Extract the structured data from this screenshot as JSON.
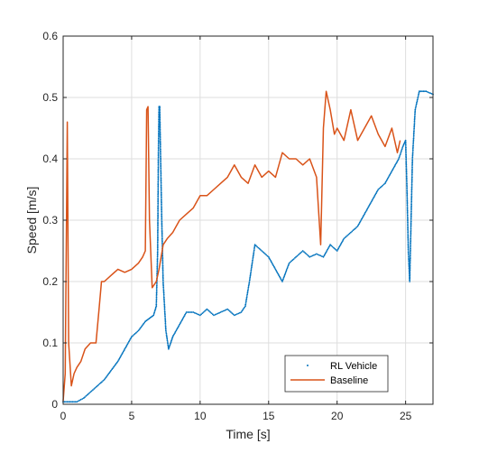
{
  "chart_data": {
    "type": "line",
    "xlabel": "Time [s]",
    "ylabel": "Speed [m/s]",
    "xlim": [
      0,
      27
    ],
    "ylim": [
      0,
      0.6
    ],
    "xticks": [
      0,
      5,
      10,
      15,
      20,
      25
    ],
    "yticks": [
      0,
      0.1,
      0.2,
      0.3,
      0.4,
      0.5,
      0.6
    ],
    "grid": true,
    "legend_position": "bottom-right",
    "series": [
      {
        "name": "RL Vehicle",
        "style": "dotted",
        "color": "#0072BD",
        "points": [
          [
            0,
            0.004
          ],
          [
            0.5,
            0.004
          ],
          [
            1,
            0.004
          ],
          [
            1.5,
            0.01
          ],
          [
            2,
            0.02
          ],
          [
            2.5,
            0.03
          ],
          [
            3,
            0.04
          ],
          [
            3.5,
            0.055
          ],
          [
            4,
            0.07
          ],
          [
            4.5,
            0.09
          ],
          [
            5,
            0.11
          ],
          [
            5.5,
            0.12
          ],
          [
            6,
            0.135
          ],
          [
            6.3,
            0.14
          ],
          [
            6.6,
            0.145
          ],
          [
            6.8,
            0.16
          ],
          [
            6.9,
            0.25
          ],
          [
            6.95,
            0.4
          ],
          [
            7.0,
            0.485
          ],
          [
            7.05,
            0.485
          ],
          [
            7.1,
            0.42
          ],
          [
            7.2,
            0.3
          ],
          [
            7.3,
            0.2
          ],
          [
            7.5,
            0.12
          ],
          [
            7.7,
            0.09
          ],
          [
            8,
            0.11
          ],
          [
            8.5,
            0.13
          ],
          [
            9,
            0.15
          ],
          [
            9.5,
            0.15
          ],
          [
            10,
            0.145
          ],
          [
            10.5,
            0.155
          ],
          [
            11,
            0.145
          ],
          [
            11.5,
            0.15
          ],
          [
            12,
            0.155
          ],
          [
            12.5,
            0.145
          ],
          [
            13,
            0.15
          ],
          [
            13.3,
            0.16
          ],
          [
            13.6,
            0.2
          ],
          [
            14,
            0.26
          ],
          [
            14.5,
            0.25
          ],
          [
            15,
            0.24
          ],
          [
            15.5,
            0.22
          ],
          [
            16,
            0.2
          ],
          [
            16.5,
            0.23
          ],
          [
            17,
            0.24
          ],
          [
            17.5,
            0.25
          ],
          [
            18,
            0.24
          ],
          [
            18.5,
            0.245
          ],
          [
            19,
            0.24
          ],
          [
            19.5,
            0.26
          ],
          [
            20,
            0.25
          ],
          [
            20.5,
            0.27
          ],
          [
            21,
            0.28
          ],
          [
            21.5,
            0.29
          ],
          [
            22,
            0.31
          ],
          [
            22.5,
            0.33
          ],
          [
            23,
            0.35
          ],
          [
            23.5,
            0.36
          ],
          [
            24,
            0.38
          ],
          [
            24.5,
            0.4
          ],
          [
            24.8,
            0.42
          ],
          [
            25.0,
            0.43
          ],
          [
            25.1,
            0.35
          ],
          [
            25.2,
            0.25
          ],
          [
            25.3,
            0.2
          ],
          [
            25.4,
            0.3
          ],
          [
            25.5,
            0.4
          ],
          [
            25.7,
            0.48
          ],
          [
            26,
            0.51
          ],
          [
            26.5,
            0.51
          ],
          [
            27,
            0.505
          ]
        ]
      },
      {
        "name": "Baseline",
        "style": "solid",
        "color": "#D95319",
        "points": [
          [
            0,
            0.005
          ],
          [
            0.15,
            0.05
          ],
          [
            0.3,
            0.46
          ],
          [
            0.4,
            0.1
          ],
          [
            0.6,
            0.03
          ],
          [
            0.8,
            0.05
          ],
          [
            1,
            0.06
          ],
          [
            1.3,
            0.07
          ],
          [
            1.6,
            0.09
          ],
          [
            2,
            0.1
          ],
          [
            2.4,
            0.1
          ],
          [
            2.6,
            0.15
          ],
          [
            2.8,
            0.2
          ],
          [
            3,
            0.2
          ],
          [
            3.5,
            0.21
          ],
          [
            4,
            0.22
          ],
          [
            4.5,
            0.215
          ],
          [
            5,
            0.22
          ],
          [
            5.5,
            0.23
          ],
          [
            5.8,
            0.24
          ],
          [
            6,
            0.25
          ],
          [
            6.1,
            0.48
          ],
          [
            6.2,
            0.485
          ],
          [
            6.3,
            0.3
          ],
          [
            6.5,
            0.19
          ],
          [
            6.8,
            0.2
          ],
          [
            7,
            0.22
          ],
          [
            7.3,
            0.26
          ],
          [
            7.6,
            0.27
          ],
          [
            8,
            0.28
          ],
          [
            8.5,
            0.3
          ],
          [
            9,
            0.31
          ],
          [
            9.5,
            0.32
          ],
          [
            10,
            0.34
          ],
          [
            10.5,
            0.34
          ],
          [
            11,
            0.35
          ],
          [
            11.5,
            0.36
          ],
          [
            12,
            0.37
          ],
          [
            12.5,
            0.39
          ],
          [
            13,
            0.37
          ],
          [
            13.5,
            0.36
          ],
          [
            14,
            0.39
          ],
          [
            14.5,
            0.37
          ],
          [
            15,
            0.38
          ],
          [
            15.5,
            0.37
          ],
          [
            16,
            0.41
          ],
          [
            16.5,
            0.4
          ],
          [
            17,
            0.4
          ],
          [
            17.5,
            0.39
          ],
          [
            18,
            0.4
          ],
          [
            18.5,
            0.37
          ],
          [
            18.8,
            0.26
          ],
          [
            19,
            0.45
          ],
          [
            19.2,
            0.51
          ],
          [
            19.5,
            0.48
          ],
          [
            19.8,
            0.44
          ],
          [
            20,
            0.45
          ],
          [
            20.5,
            0.43
          ],
          [
            21,
            0.48
          ],
          [
            21.5,
            0.43
          ],
          [
            22,
            0.45
          ],
          [
            22.5,
            0.47
          ],
          [
            23,
            0.44
          ],
          [
            23.5,
            0.42
          ],
          [
            24,
            0.45
          ],
          [
            24.4,
            0.41
          ],
          [
            24.6,
            0.43
          ]
        ]
      }
    ]
  }
}
